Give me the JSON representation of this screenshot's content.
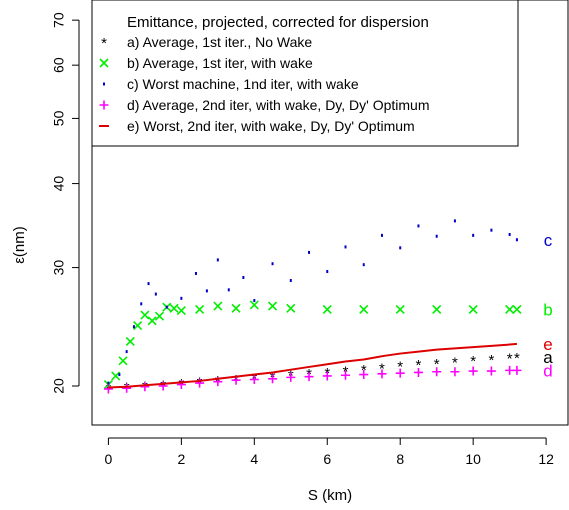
{
  "chart_data": {
    "type": "scatter",
    "title": "",
    "xlabel": "S (km)",
    "ylabel": "ε(nm)",
    "xlim": [
      -0.45,
      12.6
    ],
    "ylim": [
      17.5,
      75
    ],
    "y_scale": "log",
    "xticks": [
      0,
      2,
      4,
      6,
      8,
      10,
      12
    ],
    "yticks": [
      20,
      30,
      40,
      50,
      60,
      70
    ],
    "legend_title": "Emittance, projected, corrected for dispersion",
    "legend_placement": "top-left",
    "grid": false,
    "series": [
      {
        "name": "a) Average, 1st iter., No Wake",
        "marker": "*",
        "color": "#000000",
        "end_label": "a",
        "x": [
          0,
          0.5,
          1,
          1.5,
          2,
          2.5,
          3,
          3.5,
          4,
          4.5,
          5,
          5.5,
          6,
          6.5,
          7,
          7.5,
          8,
          8.5,
          9,
          9.5,
          10,
          10.5,
          11,
          11.2
        ],
        "y": [
          19.9,
          19.95,
          20.05,
          20.1,
          20.2,
          20.3,
          20.4,
          20.5,
          20.6,
          20.7,
          20.8,
          20.9,
          21.0,
          21.1,
          21.2,
          21.3,
          21.45,
          21.55,
          21.65,
          21.75,
          21.85,
          21.95,
          22.05,
          22.1
        ]
      },
      {
        "name": "b) Average, 1st iter, with wake",
        "marker": "x",
        "color": "#00ee00",
        "end_label": "b",
        "x": [
          0,
          0.2,
          0.4,
          0.6,
          0.8,
          1,
          1.2,
          1.4,
          1.6,
          1.8,
          2,
          2.5,
          3,
          3.5,
          4,
          4.5,
          5,
          6,
          7,
          8,
          9,
          10,
          11,
          11.2
        ],
        "y": [
          20.1,
          20.7,
          21.8,
          23.3,
          24.6,
          25.5,
          25.0,
          25.4,
          26.2,
          26.1,
          25.9,
          26.0,
          26.3,
          26.1,
          26.4,
          26.3,
          26.1,
          26.0,
          26.0,
          26.0,
          26.0,
          26.0,
          26.0,
          26.0
        ]
      },
      {
        "name": "c) Worst machine, 1nd iter, with wake",
        "marker": ".",
        "color": "#0000cc",
        "end_label": "c",
        "x": [
          0,
          0.3,
          0.5,
          0.7,
          0.9,
          1.1,
          1.3,
          1.6,
          2.0,
          2.4,
          2.7,
          3.0,
          3.3,
          3.7,
          4.0,
          4.5,
          5.0,
          5.5,
          6.0,
          6.5,
          7.0,
          7.5,
          8.0,
          8.5,
          9.0,
          9.5,
          10.0,
          10.5,
          11.0,
          11.2
        ],
        "y": [
          20.2,
          20.8,
          22.5,
          24.5,
          26.5,
          28.4,
          27.4,
          26.2,
          27.0,
          29.4,
          27.7,
          30.8,
          27.8,
          29.0,
          26.8,
          30.4,
          28.7,
          31.6,
          29.6,
          32.2,
          30.3,
          33.5,
          32.1,
          34.6,
          33.4,
          35.2,
          33.5,
          34.1,
          33.6,
          33.0
        ]
      },
      {
        "name": "d) Average, 2nd iter, with wake, Dy, Dy' Optimum",
        "marker": "+",
        "color": "#ff00ff",
        "end_label": "d",
        "x": [
          0,
          0.5,
          1,
          1.5,
          2,
          2.5,
          3,
          3.5,
          4,
          4.5,
          5,
          5.5,
          6,
          6.5,
          7,
          7.5,
          8,
          8.5,
          9,
          9.5,
          10,
          10.5,
          11,
          11.2
        ],
        "y": [
          19.8,
          19.85,
          19.95,
          20.0,
          20.1,
          20.2,
          20.3,
          20.4,
          20.45,
          20.5,
          20.6,
          20.65,
          20.7,
          20.75,
          20.8,
          20.85,
          20.9,
          20.95,
          21.0,
          21.0,
          21.05,
          21.05,
          21.1,
          21.1
        ]
      },
      {
        "name": "e) Worst, 2nd iter, with wake, Dy, Dy' Optimum",
        "marker": "-",
        "color": "#dd0000",
        "end_label": "e",
        "x": [
          0,
          0.5,
          1,
          1.5,
          2,
          2.5,
          3,
          3.5,
          4,
          4.5,
          5,
          5.5,
          6,
          6.5,
          7,
          7.5,
          8,
          8.5,
          9,
          9.5,
          10,
          10.5,
          11,
          11.2
        ],
        "y": [
          19.9,
          19.95,
          20.05,
          20.15,
          20.25,
          20.35,
          20.5,
          20.65,
          20.8,
          20.95,
          21.15,
          21.35,
          21.55,
          21.75,
          21.9,
          22.15,
          22.35,
          22.5,
          22.65,
          22.75,
          22.85,
          22.95,
          23.05,
          23.1
        ]
      }
    ]
  }
}
